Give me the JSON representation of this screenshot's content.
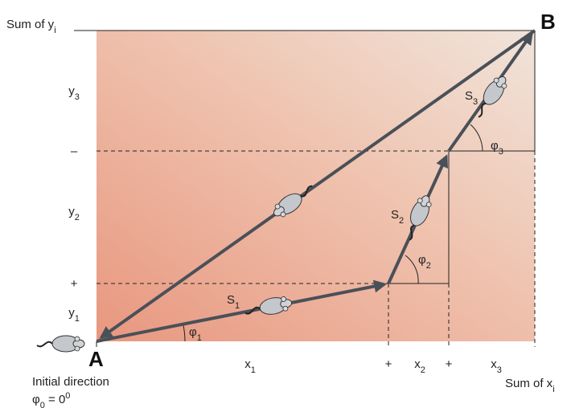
{
  "diagram": {
    "points": {
      "start": "A",
      "end": "B"
    },
    "y_axis": {
      "title": {
        "text": "Sum of y",
        "sub": "i"
      },
      "labels": [
        {
          "text": "y",
          "sub": "3"
        },
        {
          "text": "–"
        },
        {
          "text": "y",
          "sub": "2"
        },
        {
          "text": "+"
        },
        {
          "text": "y",
          "sub": "1"
        }
      ]
    },
    "x_axis": {
      "labels": [
        {
          "text": "x",
          "sub": "1"
        },
        {
          "text": "+"
        },
        {
          "text": "x",
          "sub": "2"
        },
        {
          "text": "+"
        },
        {
          "text": "x",
          "sub": "3"
        }
      ],
      "title": {
        "text": "Sum of x",
        "sub": "i"
      }
    },
    "steps": [
      {
        "text": "S",
        "sub": "1"
      },
      {
        "text": "S",
        "sub": "2"
      },
      {
        "text": "S",
        "sub": "3"
      }
    ],
    "angles": [
      {
        "text": "φ",
        "sub": "1"
      },
      {
        "text": "φ",
        "sub": "2"
      },
      {
        "text": "φ",
        "sub": "3"
      }
    ],
    "initial": {
      "caption": "Initial direction",
      "angle": {
        "text": "φ",
        "sub": "0",
        "rest": " = 0",
        "sup": "0"
      }
    }
  }
}
